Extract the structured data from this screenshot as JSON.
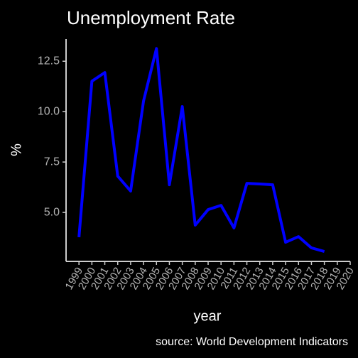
{
  "chart_data": {
    "type": "line",
    "title": "Unemployment Rate",
    "x_label": "year",
    "y_label": "%",
    "caption": "source: World Development Indicators",
    "x": [
      1999,
      2000,
      2001,
      2002,
      2003,
      2004,
      2005,
      2006,
      2007,
      2008,
      2009,
      2010,
      2011,
      2012,
      2013,
      2014,
      2015,
      2016,
      2017,
      2018
    ],
    "series": [
      {
        "name": "Unemployment Rate",
        "color": "#0000ff",
        "values": [
          3.77,
          11.51,
          11.94,
          6.8,
          6.06,
          10.53,
          13.13,
          6.37,
          10.25,
          4.37,
          5.14,
          5.35,
          4.23,
          6.44,
          6.41,
          6.37,
          3.52,
          3.8,
          3.24,
          3.06
        ]
      }
    ],
    "xlim": [
      1998,
      2020
    ],
    "xticks": [
      1999,
      2000,
      2001,
      2002,
      2003,
      2004,
      2005,
      2006,
      2007,
      2008,
      2009,
      2010,
      2011,
      2012,
      2013,
      2014,
      2015,
      2016,
      2017,
      2018,
      2019,
      2020
    ],
    "ylim": [
      2.57,
      13.6
    ],
    "yticks": [
      {
        "value": 5,
        "label": "5.0"
      },
      7.5,
      {
        "value": 10,
        "label": "10.0"
      },
      12.5
    ]
  }
}
